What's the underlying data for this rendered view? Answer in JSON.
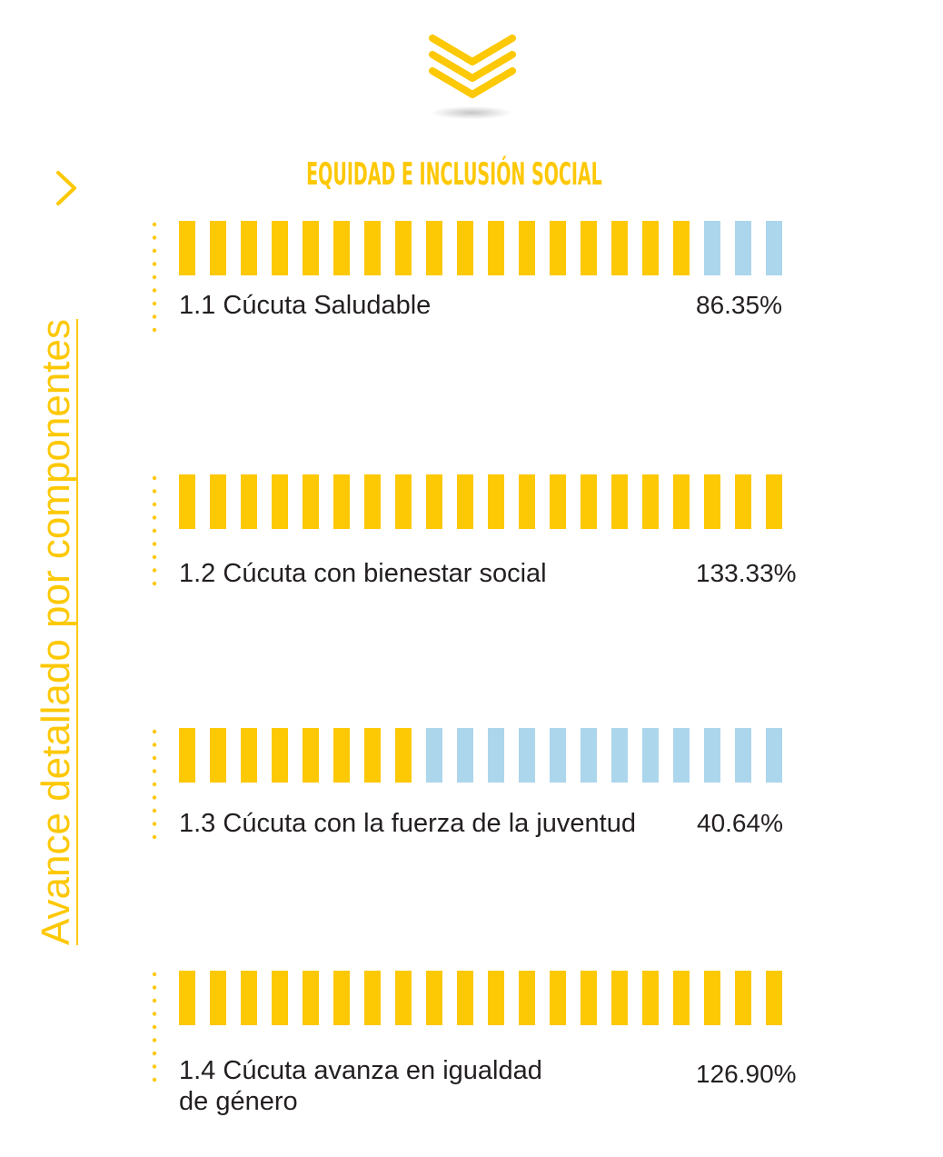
{
  "header": {
    "icon": "triple-chevron-down-icon",
    "title": "EQUIDAD E INCLUSIÓN SOCIAL"
  },
  "side_label": {
    "text": "Avance detallado por  componentes",
    "icon": "chevron-right-icon"
  },
  "colors": {
    "accent": "#fdc804",
    "remaining": "#acd6ec",
    "text": "#231f20"
  },
  "bar_segments": 20,
  "components": [
    {
      "label": "1.1 Cúcuta Saludable",
      "value": "86.35%",
      "progress_pct": 86.35
    },
    {
      "label": "1.2 Cúcuta con bienestar social",
      "value": "133.33%",
      "progress_pct": 133.33
    },
    {
      "label": "1.3 Cúcuta con la fuerza de la juventud",
      "value": "40.64%",
      "progress_pct": 40.64
    },
    {
      "label": "1.4 Cúcuta avanza en igualdad\nde género",
      "value": "126.90%",
      "progress_pct": 126.9
    }
  ]
}
